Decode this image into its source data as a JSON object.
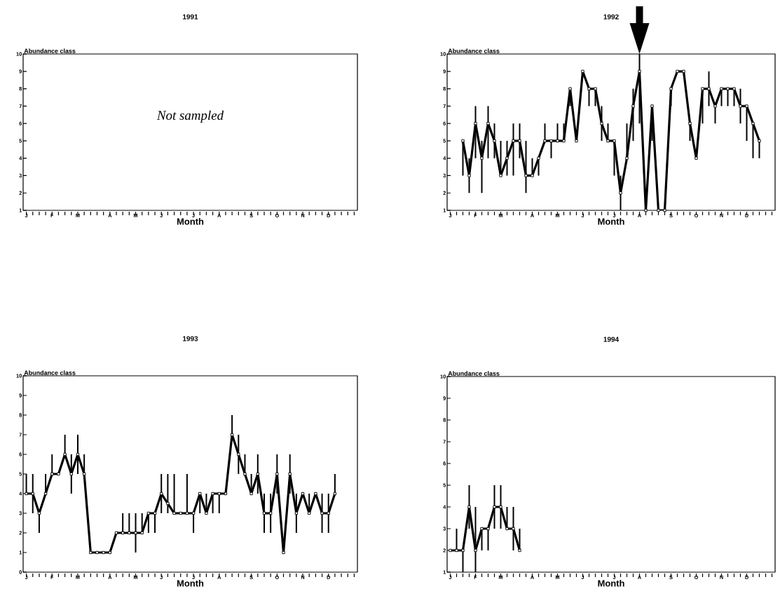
{
  "chart_data": [
    {
      "type": "line",
      "title": "1991",
      "xlabel": "Month",
      "ylabel": "Abundance class",
      "annotations": [
        "Not sampled"
      ],
      "ylim": [
        1,
        10
      ],
      "yticks": [
        1,
        2,
        3,
        4,
        5,
        6,
        7,
        8,
        9,
        10
      ],
      "marker": "square",
      "line_style": "solid",
      "color": "#000000",
      "categories": [
        "J",
        null,
        null,
        null,
        "F",
        null,
        null,
        null,
        "M",
        null,
        null,
        null,
        null,
        "A",
        null,
        null,
        null,
        "M",
        null,
        null,
        null,
        "J",
        null,
        null,
        null,
        null,
        "J",
        null,
        null,
        null,
        "A",
        null,
        null,
        null,
        null,
        "S",
        null,
        null,
        null,
        "O",
        null,
        null,
        null,
        "N",
        null,
        null,
        null,
        "D",
        null,
        null,
        null,
        null
      ]
    },
    {
      "type": "line",
      "title": "1992",
      "xlabel": "Month",
      "ylabel": "Abundance class",
      "ylim": [
        1,
        10
      ],
      "yticks": [
        1,
        2,
        3,
        4,
        5,
        6,
        7,
        8,
        9,
        10
      ],
      "marker": "square",
      "line_style": "solid",
      "color": "#000000",
      "categories": [
        "J",
        null,
        null,
        null,
        "F",
        null,
        null,
        null,
        "M",
        null,
        null,
        null,
        null,
        "A",
        null,
        null,
        null,
        "M",
        null,
        null,
        null,
        "J",
        null,
        null,
        null,
        null,
        "J",
        null,
        null,
        null,
        "A",
        null,
        null,
        null,
        null,
        "S",
        null,
        null,
        null,
        "O",
        null,
        null,
        null,
        "N",
        null,
        null,
        null,
        "D",
        null,
        null,
        null,
        null
      ],
      "values": [
        null,
        null,
        5,
        3,
        6,
        4,
        6,
        5,
        3,
        4,
        5,
        5,
        3,
        3,
        4,
        5,
        5,
        5,
        5,
        8,
        5,
        9,
        8,
        8,
        6,
        5,
        5,
        2,
        4,
        7,
        9,
        1,
        7,
        1,
        1,
        8,
        9,
        9,
        6,
        4,
        8,
        8,
        7,
        8,
        8,
        8,
        7,
        7,
        6,
        5,
        null,
        null
      ],
      "errors": [
        null,
        null,
        [
          3,
          5
        ],
        [
          2,
          4
        ],
        [
          4,
          7
        ],
        [
          2,
          5
        ],
        [
          4,
          7
        ],
        [
          4,
          6
        ],
        [
          3,
          5
        ],
        [
          3,
          5
        ],
        [
          3,
          6
        ],
        [
          4,
          6
        ],
        [
          2,
          5
        ],
        [
          3,
          4
        ],
        [
          3,
          4
        ],
        [
          5,
          6
        ],
        [
          4,
          5
        ],
        [
          5,
          6
        ],
        [
          5,
          6
        ],
        [
          7,
          8
        ],
        null,
        null,
        [
          7,
          8
        ],
        [
          7,
          8
        ],
        [
          5,
          7
        ],
        [
          5,
          6
        ],
        [
          3,
          5
        ],
        [
          1,
          3
        ],
        [
          4,
          6
        ],
        [
          5,
          8
        ],
        [
          6,
          10
        ],
        null,
        [
          5,
          7
        ],
        null,
        null,
        [
          7,
          8
        ],
        null,
        null,
        [
          5,
          6
        ],
        null,
        [
          6,
          8
        ],
        [
          7,
          9
        ],
        [
          6,
          7
        ],
        [
          7,
          8
        ],
        [
          7,
          8
        ],
        [
          7,
          8
        ],
        [
          6,
          8
        ],
        [
          5,
          7
        ],
        [
          4,
          6
        ],
        [
          4,
          5
        ],
        null,
        null
      ]
    },
    {
      "type": "line",
      "title": "1993",
      "xlabel": "Month",
      "ylabel": "Abundance class",
      "ylim": [
        0,
        10
      ],
      "yticks": [
        0,
        1,
        2,
        3,
        4,
        5,
        6,
        7,
        8,
        9,
        10
      ],
      "marker": "square",
      "line_style": "solid",
      "color": "#000000",
      "categories": [
        "J",
        null,
        null,
        null,
        "F",
        null,
        null,
        null,
        "M",
        null,
        null,
        null,
        null,
        "A",
        null,
        null,
        null,
        "M",
        null,
        null,
        null,
        "J",
        null,
        null,
        null,
        null,
        "J",
        null,
        null,
        null,
        "A",
        null,
        null,
        null,
        null,
        "S",
        null,
        null,
        null,
        "O",
        null,
        null,
        null,
        "N",
        null,
        null,
        null,
        "D",
        null,
        null,
        null,
        null
      ],
      "values": [
        4,
        4,
        3,
        4,
        5,
        5,
        6,
        5,
        6,
        5,
        1,
        1,
        1,
        1,
        2,
        2,
        2,
        2,
        2,
        3,
        3,
        4,
        3.5,
        3,
        3,
        3,
        3,
        4,
        3,
        4,
        4,
        4,
        7,
        6,
        5,
        4,
        5,
        3,
        3,
        5,
        1,
        5,
        3,
        4,
        3,
        4,
        3,
        3,
        4,
        null,
        null,
        null
      ],
      "errors": [
        [
          4,
          5
        ],
        [
          3,
          5
        ],
        [
          2,
          3
        ],
        [
          4,
          5
        ],
        [
          5,
          6
        ],
        null,
        [
          6,
          7
        ],
        [
          4,
          6
        ],
        [
          5,
          7
        ],
        [
          5,
          6
        ],
        null,
        null,
        null,
        null,
        null,
        [
          2,
          3
        ],
        [
          2,
          3
        ],
        [
          1,
          3
        ],
        [
          2,
          3
        ],
        [
          2,
          3
        ],
        [
          2,
          3
        ],
        [
          3,
          5
        ],
        [
          3,
          5
        ],
        [
          3,
          5
        ],
        null,
        [
          3,
          5
        ],
        [
          2,
          3
        ],
        [
          3,
          4
        ],
        [
          3,
          4
        ],
        [
          3,
          4
        ],
        [
          3,
          4
        ],
        null,
        [
          7,
          8
        ],
        [
          5,
          7
        ],
        [
          5,
          6
        ],
        [
          4,
          5
        ],
        [
          4,
          6
        ],
        [
          2,
          4
        ],
        [
          2,
          4
        ],
        [
          4,
          6
        ],
        null,
        [
          4,
          6
        ],
        [
          2,
          4
        ],
        null,
        [
          3,
          4
        ],
        null,
        [
          2,
          4
        ],
        [
          2,
          4
        ],
        [
          4,
          5
        ],
        null,
        null,
        null
      ]
    },
    {
      "type": "line",
      "title": "1994",
      "xlabel": "Month",
      "ylabel": "Abundance class",
      "ylim": [
        1,
        10
      ],
      "yticks": [
        1,
        2,
        3,
        4,
        5,
        6,
        7,
        8,
        9,
        10
      ],
      "marker": "square",
      "line_style": "solid",
      "color": "#000000",
      "categories": [
        "J",
        null,
        null,
        null,
        "F",
        null,
        null,
        null,
        "M",
        null,
        null,
        null,
        null,
        "A",
        null,
        null,
        null,
        "M",
        null,
        null,
        null,
        "J",
        null,
        null,
        null,
        null,
        "J",
        null,
        null,
        null,
        "A",
        null,
        null,
        null,
        null,
        "S",
        null,
        null,
        null,
        "O",
        null,
        null,
        null,
        "N",
        null,
        null,
        null,
        "D",
        null,
        null,
        null,
        null
      ],
      "values": [
        2,
        2,
        2,
        4,
        2,
        3,
        3,
        4,
        4,
        3,
        3,
        2,
        null,
        null,
        null,
        null,
        null,
        null,
        null,
        null,
        null,
        null,
        null,
        null,
        null,
        null,
        null,
        null,
        null,
        null,
        null,
        null,
        null,
        null,
        null,
        null,
        null,
        null,
        null,
        null,
        null,
        null,
        null,
        null,
        null,
        null,
        null,
        null,
        null,
        null,
        null,
        null
      ],
      "errors": [
        null,
        [
          2,
          3
        ],
        [
          1,
          2
        ],
        [
          3,
          5
        ],
        [
          1,
          4
        ],
        [
          2,
          3
        ],
        [
          2,
          3
        ],
        [
          3,
          5
        ],
        [
          3,
          5
        ],
        [
          3,
          4
        ],
        [
          2,
          4
        ],
        [
          2,
          3
        ],
        null,
        null,
        null,
        null,
        null,
        null,
        null,
        null,
        null,
        null,
        null,
        null,
        null,
        null,
        null,
        null,
        null,
        null,
        null,
        null,
        null,
        null,
        null,
        null,
        null,
        null,
        null,
        null,
        null,
        null,
        null,
        null,
        null,
        null,
        null,
        null,
        null,
        null,
        null,
        null
      ]
    }
  ]
}
